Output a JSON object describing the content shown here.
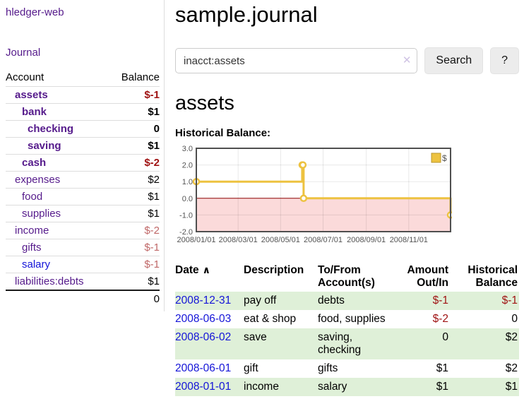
{
  "theme": {
    "link_purple": "#551a8b",
    "link_blue": "#1414d8",
    "negative_strong": "#a01414",
    "negative_muted": "#c06868",
    "row_green": "#dff0d8"
  },
  "icons": {
    "clear_search": "✕",
    "sort_ascending": "∧"
  },
  "sidebar": {
    "brand": "hledger-web",
    "journal_link": "Journal",
    "accounts": {
      "headers": {
        "account": "Account",
        "balance": "Balance"
      },
      "rows": [
        {
          "account": "assets",
          "balance": "$-1"
        },
        {
          "account": "bank",
          "balance": "$1"
        },
        {
          "account": "checking",
          "balance": "0"
        },
        {
          "account": "saving",
          "balance": "$1"
        },
        {
          "account": "cash",
          "balance": "$-2"
        },
        {
          "account": "expenses",
          "balance": "$2"
        },
        {
          "account": "food",
          "balance": "$1"
        },
        {
          "account": "supplies",
          "balance": "$1"
        },
        {
          "account": "income",
          "balance": "$-2"
        },
        {
          "account": "gifts",
          "balance": "$-1"
        },
        {
          "account": "salary",
          "balance": "$-1"
        },
        {
          "account": "liabilities:debts",
          "balance": "$1"
        }
      ],
      "total": "0"
    }
  },
  "main": {
    "title": "sample.journal",
    "search": {
      "value": "inacct:assets",
      "button": "Search",
      "help_button": "?"
    },
    "section_title": "assets",
    "chart_label": "Historical Balance:",
    "register": {
      "headers": [
        "Date",
        "Description",
        "To/From Account(s)",
        "Amount Out/In",
        "Historical Balance"
      ],
      "rows": [
        {
          "date": "2008-12-31",
          "description": "pay off",
          "accounts": "debts",
          "amount": "$-1",
          "balance": "$-1"
        },
        {
          "date": "2008-06-03",
          "description": "eat & shop",
          "accounts": "food, supplies",
          "amount": "$-2",
          "balance": "0"
        },
        {
          "date": "2008-06-02",
          "description": "save",
          "accounts": "saving, checking",
          "amount": "0",
          "balance": "$2"
        },
        {
          "date": "2008-06-01",
          "description": "gift",
          "accounts": "gifts",
          "amount": "$1",
          "balance": "$2"
        },
        {
          "date": "2008-01-01",
          "description": "income",
          "accounts": "salary",
          "amount": "$1",
          "balance": "$1"
        }
      ]
    }
  },
  "chart_data": {
    "type": "line",
    "step": true,
    "title": "Historical Balance:",
    "series": [
      {
        "name": "$",
        "points": [
          [
            "2008-01-01",
            1
          ],
          [
            "2008-06-01",
            2
          ],
          [
            "2008-06-02",
            2
          ],
          [
            "2008-06-03",
            0
          ],
          [
            "2008-12-31",
            -1
          ]
        ]
      }
    ],
    "xmin": "2008-01-01",
    "xmax": "2008-12-31",
    "ymin": -2,
    "ymax": 3,
    "yticks": [
      {
        "v": 3,
        "label": "3.0"
      },
      {
        "v": 2,
        "label": "2.0"
      },
      {
        "v": 1,
        "label": "1.0"
      },
      {
        "v": 0,
        "label": "0.0"
      },
      {
        "v": -1,
        "label": "-1.0"
      },
      {
        "v": -2,
        "label": "-2.0"
      }
    ],
    "xticks": [
      {
        "v": "2008-01-01",
        "label": "2008/01/01"
      },
      {
        "v": "2008-03-01",
        "label": "2008/03/01"
      },
      {
        "v": "2008-05-01",
        "label": "2008/05/01"
      },
      {
        "v": "2008-07-01",
        "label": "2008/07/01"
      },
      {
        "v": "2008-09-01",
        "label": "2008/09/01"
      },
      {
        "v": "2008-11-01",
        "label": "2008/11/01"
      }
    ],
    "legend_position": "top-right",
    "grid": true,
    "colors": {
      "line": "#edc240",
      "marker_fill": "#ffffff",
      "negative_region": "#fbdada",
      "zero_line": "#8b0000",
      "border": "#4f4f4f",
      "grid": "rgba(0,0,0,0.09)",
      "tick_text": "#545454",
      "legend_square_border": "#b89530"
    }
  }
}
